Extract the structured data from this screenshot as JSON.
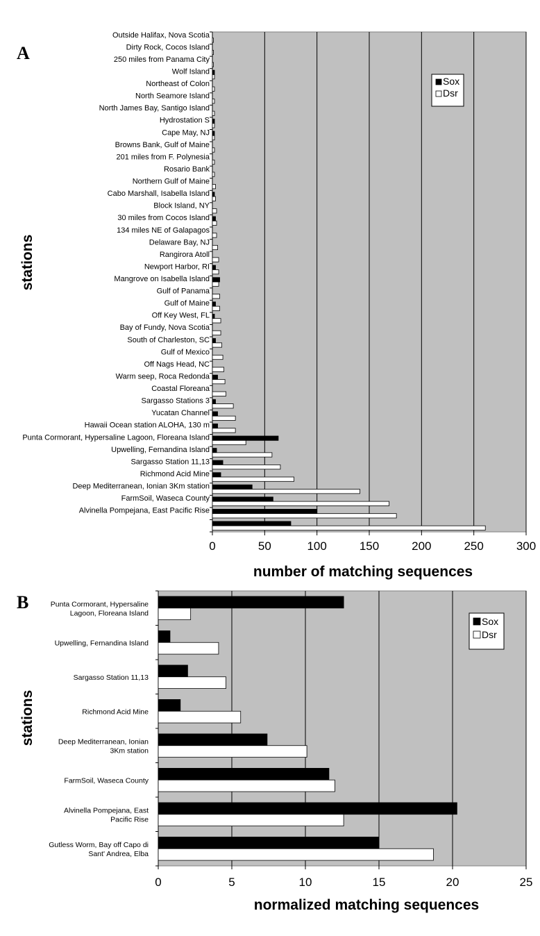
{
  "colors": {
    "plot_bg": "#c0c0c0",
    "sox": "#000000",
    "dsr": "#ffffff",
    "grid": "#000000"
  },
  "chart_data": [
    {
      "panel": "A",
      "type": "bar",
      "orientation": "horizontal",
      "xlabel": "number of matching sequences",
      "ylabel": "stations",
      "xlim": [
        0,
        300
      ],
      "xticks": [
        0,
        50,
        100,
        150,
        200,
        250,
        300
      ],
      "grid": true,
      "legend_placement": "top-right",
      "categories": [
        "Outside Halifax, Nova Scotia",
        "Dirty Rock, Cocos Island",
        "250 miles from Panama City",
        "Wolf Island",
        "Northeast of Colon",
        "North Seamore Island",
        "North James Bay, Santigo Island",
        "Hydrostation S",
        "Cape May, NJ",
        "Browns Bank, Gulf of Maine",
        "201 miles from F. Polynesia",
        "Rosario Bank",
        "Northern Gulf of Maine",
        "Cabo Marshall, Isabella Island",
        "Block Island, NY",
        "30 miles from Cocos Island",
        "134 miles NE of Galapagos",
        "Delaware Bay, NJ",
        "Rangirora Atoll",
        "Newport Harbor, RI",
        "Mangrove on Isabella Island",
        "Gulf of Panama",
        "Gulf of Maine",
        "Off Key West, FL",
        "Bay of Fundy, Nova Scotia",
        "South of Charleston, SC",
        "Gulf of Mexico",
        "Off Nags Head, NC",
        "Warm seep, Roca Redonda",
        "Coastal Floreana",
        "Sargasso Stations 3",
        "Yucatan Channel",
        "Hawaii Ocean station ALOHA, 130 m",
        "Punta Cormorant, Hypersaline Lagoon, Floreana Island",
        "Upwelling, Fernandina Island",
        "Sargasso Station 11,13",
        "Richmond Acid Mine",
        "Deep Mediterranean, Ionian 3Km station",
        "FarmSoil, Waseca County",
        "Alvinella Pompejana, East Pacific Rise",
        ""
      ],
      "series": [
        {
          "name": "Sox",
          "values": [
            0,
            0,
            0,
            2,
            0,
            0,
            0,
            2,
            2,
            0,
            0,
            0,
            0,
            2,
            0,
            3,
            0,
            0,
            0,
            3,
            7,
            0,
            3,
            2,
            0,
            3,
            0,
            0,
            5,
            0,
            3,
            5,
            5,
            63,
            4,
            10,
            8,
            38,
            58,
            100,
            75
          ]
        },
        {
          "name": "Dsr",
          "values": [
            1,
            1,
            1,
            2,
            2,
            2,
            2,
            2,
            2,
            2,
            2,
            2,
            3,
            3,
            4,
            4,
            4,
            5,
            6,
            6,
            6,
            7,
            7,
            8,
            8,
            9,
            10,
            11,
            12,
            13,
            20,
            22,
            22,
            32,
            57,
            65,
            78,
            141,
            169,
            176,
            261
          ]
        }
      ]
    },
    {
      "panel": "B",
      "type": "bar",
      "orientation": "horizontal",
      "xlabel": "normalized matching sequences",
      "ylabel": "stations",
      "xlim": [
        0,
        25
      ],
      "xticks": [
        0,
        5,
        10,
        15,
        20,
        25
      ],
      "grid": true,
      "legend_placement": "top-right",
      "categories": [
        [
          "Punta Cormorant, Hypersaline",
          "Lagoon, Floreana Island"
        ],
        [
          "Upwelling, Fernandina Island"
        ],
        [
          "Sargasso Station 11,13"
        ],
        [
          "Richmond Acid Mine"
        ],
        [
          "Deep Mediterranean, Ionian",
          "3Km station"
        ],
        [
          "FarmSoil, Waseca County"
        ],
        [
          "Alvinella Pompejana, East",
          "Pacific Rise"
        ],
        [
          "Gutless Worm, Bay off Capo di",
          "Sant' Andrea, Elba"
        ]
      ],
      "series": [
        {
          "name": "Sox",
          "values": [
            12.6,
            0.8,
            2.0,
            1.5,
            7.4,
            11.6,
            20.3,
            15.0
          ]
        },
        {
          "name": "Dsr",
          "values": [
            2.2,
            4.1,
            4.6,
            5.6,
            10.1,
            12.0,
            12.6,
            18.7
          ]
        }
      ]
    }
  ]
}
